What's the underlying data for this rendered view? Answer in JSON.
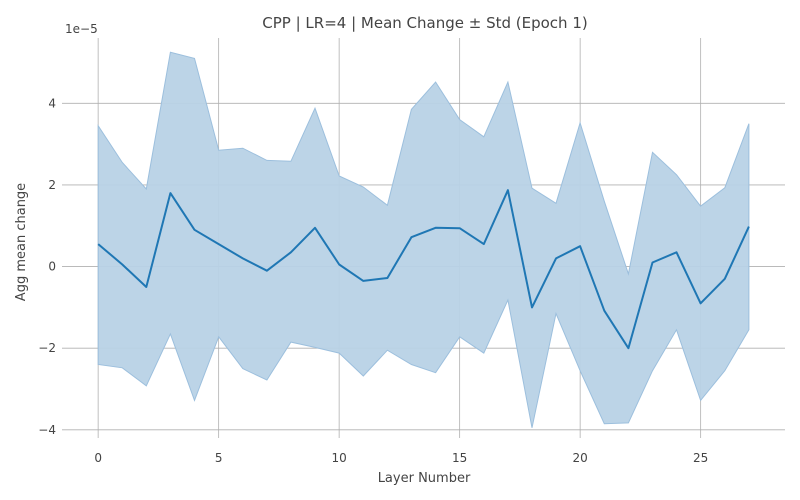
{
  "chart_data": {
    "type": "area",
    "title": "CPP | LR=4 | Mean Change ± Std (Epoch 1)",
    "xlabel": "Layer Number",
    "ylabel": "Agg mean change",
    "y_offset_label": "1e−5",
    "xlim": [
      -1.5,
      28.5
    ],
    "ylim": [
      -4.2,
      5.6
    ],
    "x_ticks": [
      0,
      5,
      10,
      15,
      20,
      25
    ],
    "y_ticks": [
      -4,
      -2,
      0,
      2,
      4
    ],
    "x_tick_labels": [
      "0",
      "5",
      "10",
      "15",
      "20",
      "25"
    ],
    "y_tick_labels": [
      "−4",
      "−2",
      "0",
      "2",
      "4"
    ],
    "grid": true,
    "legend": "none",
    "colors": {
      "line": "#1f77b4",
      "band": "#b8d2e6",
      "band_edge": "#9cbfdd",
      "grid": "#b0b0b0"
    },
    "x": [
      0,
      1,
      2,
      3,
      4,
      5,
      6,
      7,
      8,
      9,
      10,
      11,
      12,
      13,
      14,
      15,
      16,
      17,
      18,
      19,
      20,
      21,
      22,
      23,
      24,
      25,
      26,
      27
    ],
    "series": [
      {
        "mean": [
          0.55,
          0.05,
          -0.5,
          1.8,
          0.9,
          0.55,
          0.2,
          -0.1,
          0.35,
          0.95,
          0.05,
          -0.35,
          -0.28,
          0.72,
          0.95,
          0.94,
          0.55,
          1.87,
          -1.0,
          0.2,
          0.5,
          -1.08,
          -2.0,
          0.1,
          0.35,
          -0.9,
          -0.3,
          0.98
        ],
        "upper": [
          3.45,
          2.55,
          1.9,
          5.25,
          5.1,
          2.85,
          2.9,
          2.6,
          2.58,
          3.88,
          2.22,
          1.95,
          1.5,
          3.85,
          4.52,
          3.6,
          3.18,
          4.52,
          1.92,
          1.55,
          3.52,
          1.6,
          -0.18,
          2.8,
          2.25,
          1.48,
          1.93,
          3.5
        ],
        "lower": [
          -2.4,
          -2.48,
          -2.92,
          -1.65,
          -3.28,
          -1.72,
          -2.5,
          -2.78,
          -1.85,
          -1.98,
          -2.12,
          -2.68,
          -2.05,
          -2.4,
          -2.6,
          -1.72,
          -2.12,
          -0.82,
          -3.95,
          -1.15,
          -2.55,
          -3.85,
          -3.83,
          -2.55,
          -1.55,
          -3.28,
          -2.55,
          -1.55
        ]
      }
    ]
  }
}
